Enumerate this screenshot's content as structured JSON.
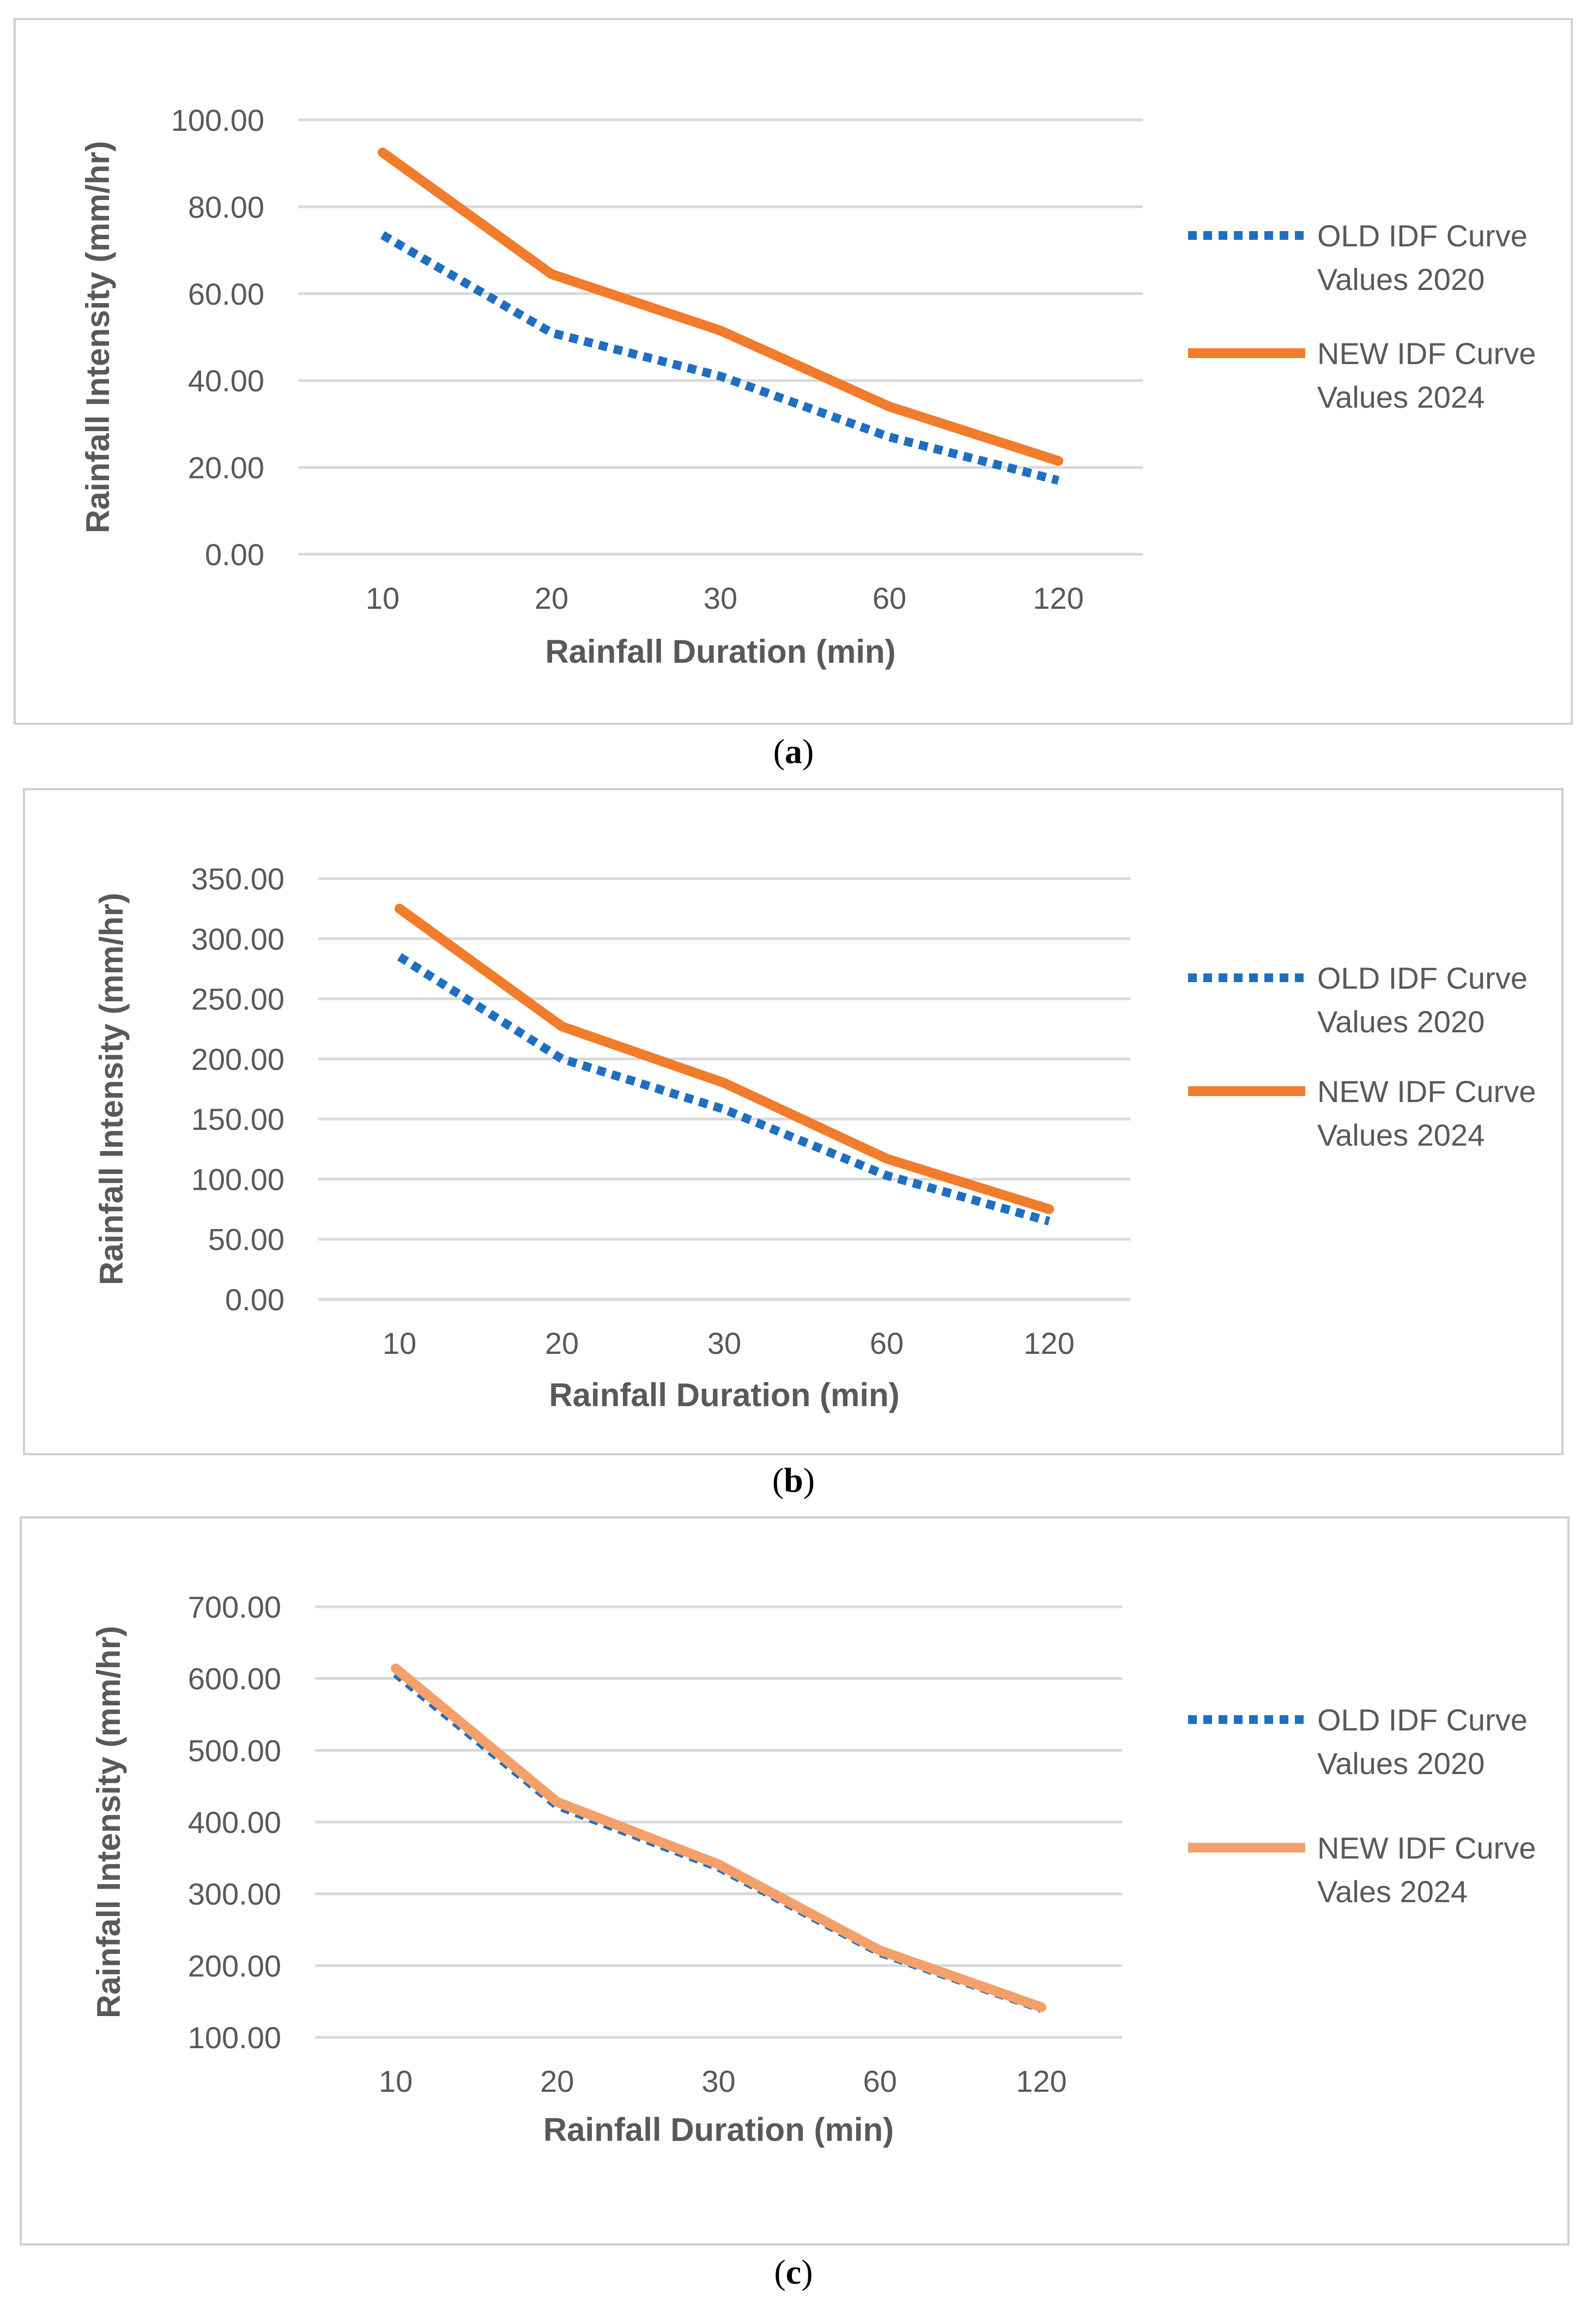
{
  "chart_data": [
    {
      "type": "line",
      "title": "",
      "xlabel": "Rainfall Duration (min)",
      "ylabel": "Rainfall Intensity (mm/hr)",
      "categories": [
        "10",
        "20",
        "30",
        "60",
        "120"
      ],
      "yticks": [
        "0.00",
        "20.00",
        "40.00",
        "60.00",
        "80.00",
        "100.00"
      ],
      "ylim": [
        0,
        100
      ],
      "grid": true,
      "legend_position": "right",
      "series": [
        {
          "name_lines": [
            "OLD IDF Curve",
            "Values 2020"
          ],
          "values": [
            73.5,
            51,
            41,
            27,
            17
          ],
          "color": "#1f6fc1",
          "dashed": true
        },
        {
          "name_lines": [
            "NEW IDF Curve",
            "Values 2024"
          ],
          "values": [
            92.5,
            64.5,
            51.5,
            34,
            21.5
          ],
          "color": "#f07c2c",
          "dashed": false
        }
      ],
      "caption_open": "(",
      "caption_letter": "a",
      "caption_close": ")"
    },
    {
      "type": "line",
      "title": "",
      "xlabel": "Rainfall Duration (min)",
      "ylabel": "Rainfall Intensity (mm/hr)",
      "categories": [
        "10",
        "20",
        "30",
        "60",
        "120"
      ],
      "yticks": [
        "0.00",
        "50.00",
        "100.00",
        "150.00",
        "200.00",
        "250.00",
        "300.00",
        "350.00"
      ],
      "ylim": [
        0,
        350
      ],
      "grid": true,
      "legend_position": "right",
      "series": [
        {
          "name_lines": [
            "OLD IDF Curve",
            "Values 2020"
          ],
          "values": [
            285,
            200,
            158,
            103,
            65
          ],
          "color": "#1f6fc1",
          "dashed": true
        },
        {
          "name_lines": [
            "NEW IDF Curve",
            "Values 2024"
          ],
          "values": [
            325,
            227,
            180,
            117,
            75
          ],
          "color": "#f07c2c",
          "dashed": false
        }
      ],
      "caption_open": "(",
      "caption_letter": "b",
      "caption_close": ")"
    },
    {
      "type": "line",
      "title": "",
      "xlabel": "Rainfall Duration (min)",
      "ylabel": "Rainfall Intensity (mm/hr)",
      "categories": [
        "10",
        "20",
        "30",
        "60",
        "120"
      ],
      "yticks": [
        "100.00",
        "200.00",
        "300.00",
        "400.00",
        "500.00",
        "600.00",
        "700.00"
      ],
      "ylim": [
        100,
        700
      ],
      "grid": true,
      "legend_position": "right",
      "series": [
        {
          "name_lines": [
            "OLD IDF Curve",
            "Values 2020"
          ],
          "values": [
            607,
            423,
            337,
            218,
            140
          ],
          "color": "#1f6fc1",
          "dashed": true
        },
        {
          "name_lines": [
            "NEW IDF Curve",
            "Vales 2024"
          ],
          "values": [
            614,
            428,
            341,
            221,
            142
          ],
          "color": "#f4a06a",
          "dashed": false
        }
      ],
      "caption_open": "(",
      "caption_letter": "c",
      "caption_close": ")"
    }
  ]
}
